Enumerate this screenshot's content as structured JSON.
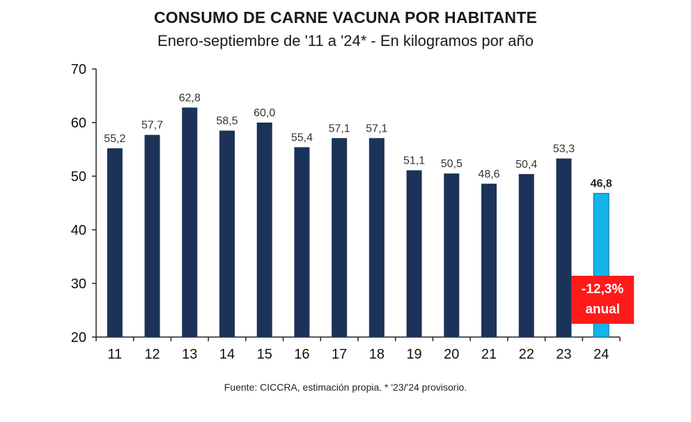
{
  "chart_data": {
    "type": "bar",
    "title": "CONSUMO DE CARNE VACUNA POR HABITANTE",
    "subtitle": "Enero-septiembre de '11 a '24* - En kilogramos por año",
    "categories": [
      "11",
      "12",
      "13",
      "14",
      "15",
      "16",
      "17",
      "18",
      "19",
      "20",
      "21",
      "22",
      "23",
      "24"
    ],
    "values": [
      55.2,
      57.7,
      62.8,
      58.5,
      60.0,
      55.4,
      57.1,
      57.1,
      51.1,
      50.5,
      48.6,
      50.4,
      53.3,
      46.8
    ],
    "value_labels": [
      "55,2",
      "57,7",
      "62,8",
      "58,5",
      "60,0",
      "55,4",
      "57,1",
      "57,1",
      "51,1",
      "50,5",
      "48,6",
      "50,4",
      "53,3",
      "46,8"
    ],
    "ylim": [
      20,
      70
    ],
    "yticks": [
      "20",
      "30",
      "40",
      "50",
      "60",
      "70"
    ],
    "bar_color": "#1b3358",
    "highlight_color": "#13b4ec",
    "highlight_index": 13,
    "annotation": {
      "line1": "-12,3%",
      "line2": "anual",
      "color": "#ff1a1a"
    },
    "grid": false
  },
  "source": "Fuente: CICCRA, estimación propia. * '23/'24 provisorio."
}
